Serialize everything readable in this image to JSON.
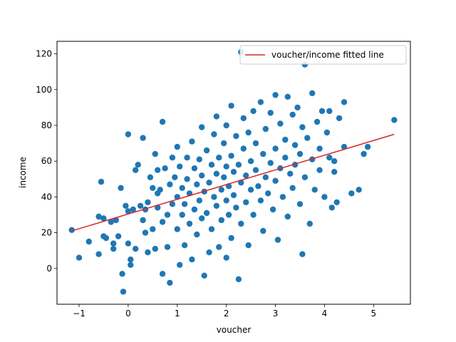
{
  "chart_data": {
    "type": "scatter",
    "title": "",
    "xlabel": "voucher",
    "ylabel": "income",
    "xlim": [
      -1.45,
      5.75
    ],
    "ylim": [
      -20,
      127
    ],
    "xticks": [
      -1,
      0,
      1,
      2,
      3,
      4,
      5
    ],
    "yticks": [
      0,
      20,
      40,
      60,
      80,
      100,
      120
    ],
    "xtick_labels": [
      "−1",
      "0",
      "1",
      "2",
      "3",
      "4",
      "5"
    ],
    "ytick_labels": [
      "0",
      "20",
      "40",
      "60",
      "80",
      "100",
      "120"
    ],
    "grid": false,
    "legend": {
      "placement": "top-right",
      "entries": [
        "voucher/income fitted line"
      ]
    },
    "colors": {
      "points": "#1f77b4",
      "fit_line": "#d62728"
    },
    "fit_line": {
      "x": [
        -1.15,
        5.42
      ],
      "y": [
        21,
        75
      ]
    },
    "series": [
      {
        "points": [
          [
            -1.15,
            21.5
          ],
          [
            -1.0,
            6
          ],
          [
            -0.8,
            15
          ],
          [
            -0.6,
            8
          ],
          [
            -0.6,
            29
          ],
          [
            -0.55,
            48.5
          ],
          [
            -0.5,
            28
          ],
          [
            -0.5,
            18
          ],
          [
            -0.45,
            17
          ],
          [
            -0.35,
            26
          ],
          [
            -0.3,
            14
          ],
          [
            -0.3,
            11
          ],
          [
            -0.25,
            27
          ],
          [
            -0.2,
            18
          ],
          [
            -0.15,
            45
          ],
          [
            -0.1,
            -13
          ],
          [
            -0.12,
            -3
          ],
          [
            -0.05,
            35
          ],
          [
            0.0,
            75
          ],
          [
            0.0,
            32
          ],
          [
            0.05,
            2
          ],
          [
            0.05,
            5
          ],
          [
            0.0,
            14
          ],
          [
            0.1,
            33
          ],
          [
            0.15,
            55
          ],
          [
            0.15,
            11
          ],
          [
            0.2,
            58
          ],
          [
            0.25,
            35
          ],
          [
            0.3,
            73
          ],
          [
            0.3,
            27
          ],
          [
            0.35,
            20
          ],
          [
            0.35,
            33
          ],
          [
            0.4,
            37
          ],
          [
            0.4,
            9
          ],
          [
            0.45,
            51
          ],
          [
            0.5,
            22
          ],
          [
            0.5,
            45
          ],
          [
            0.55,
            64
          ],
          [
            0.55,
            11
          ],
          [
            0.6,
            55
          ],
          [
            0.6,
            34
          ],
          [
            0.6,
            42
          ],
          [
            0.65,
            44
          ],
          [
            0.7,
            26
          ],
          [
            0.7,
            82
          ],
          [
            0.7,
            -3
          ],
          [
            0.75,
            56
          ],
          [
            0.8,
            12
          ],
          [
            0.8,
            30
          ],
          [
            0.85,
            -8
          ],
          [
            0.85,
            47
          ],
          [
            0.9,
            62
          ],
          [
            0.9,
            36
          ],
          [
            0.95,
            51
          ],
          [
            1.0,
            68
          ],
          [
            1.0,
            22
          ],
          [
            1.0,
            40
          ],
          [
            1.05,
            2
          ],
          [
            1.05,
            57
          ],
          [
            1.1,
            45
          ],
          [
            1.1,
            30
          ],
          [
            1.15,
            13
          ],
          [
            1.15,
            36
          ],
          [
            1.2,
            62
          ],
          [
            1.2,
            50
          ],
          [
            1.25,
            25
          ],
          [
            1.25,
            42
          ],
          [
            1.3,
            71
          ],
          [
            1.3,
            5
          ],
          [
            1.35,
            33
          ],
          [
            1.35,
            56
          ],
          [
            1.4,
            47
          ],
          [
            1.4,
            19
          ],
          [
            1.45,
            61
          ],
          [
            1.45,
            38
          ],
          [
            1.5,
            79
          ],
          [
            1.5,
            28
          ],
          [
            1.5,
            52
          ],
          [
            1.55,
            -4
          ],
          [
            1.55,
            43
          ],
          [
            1.6,
            66
          ],
          [
            1.6,
            31
          ],
          [
            1.65,
            9
          ],
          [
            1.65,
            48
          ],
          [
            1.7,
            58
          ],
          [
            1.7,
            22
          ],
          [
            1.75,
            75
          ],
          [
            1.75,
            40
          ],
          [
            1.8,
            85
          ],
          [
            1.8,
            53
          ],
          [
            1.8,
            35
          ],
          [
            1.85,
            12
          ],
          [
            1.85,
            62
          ],
          [
            1.9,
            44
          ],
          [
            1.9,
            27
          ],
          [
            1.95,
            70
          ],
          [
            1.95,
            51
          ],
          [
            2.0,
            80
          ],
          [
            2.0,
            38
          ],
          [
            2.0,
            57
          ],
          [
            2.0,
            6
          ],
          [
            2.05,
            46
          ],
          [
            2.05,
            30
          ],
          [
            2.1,
            91
          ],
          [
            2.1,
            63
          ],
          [
            2.1,
            17
          ],
          [
            2.15,
            54
          ],
          [
            2.15,
            41
          ],
          [
            2.2,
            74
          ],
          [
            2.2,
            34
          ],
          [
            2.25,
            -6
          ],
          [
            2.25,
            58
          ],
          [
            2.3,
            121
          ],
          [
            2.3,
            48
          ],
          [
            2.3,
            25
          ],
          [
            2.35,
            67
          ],
          [
            2.35,
            84
          ],
          [
            2.4,
            52
          ],
          [
            2.4,
            37
          ],
          [
            2.45,
            76
          ],
          [
            2.45,
            13
          ],
          [
            2.5,
            60
          ],
          [
            2.5,
            44
          ],
          [
            2.55,
            88
          ],
          [
            2.55,
            30
          ],
          [
            2.6,
            55
          ],
          [
            2.6,
            70
          ],
          [
            2.65,
            46
          ],
          [
            2.7,
            93
          ],
          [
            2.7,
            38
          ],
          [
            2.75,
            64
          ],
          [
            2.75,
            21
          ],
          [
            2.8,
            51
          ],
          [
            2.8,
            78
          ],
          [
            2.85,
            42
          ],
          [
            2.9,
            87
          ],
          [
            2.9,
            59
          ],
          [
            2.95,
            33
          ],
          [
            3.0,
            97
          ],
          [
            3.0,
            67
          ],
          [
            3.0,
            49
          ],
          [
            3.05,
            16
          ],
          [
            3.1,
            56
          ],
          [
            3.1,
            81
          ],
          [
            3.15,
            40
          ],
          [
            3.2,
            72
          ],
          [
            3.2,
            62
          ],
          [
            3.25,
            96
          ],
          [
            3.25,
            29
          ],
          [
            3.3,
            53
          ],
          [
            3.35,
            86
          ],
          [
            3.35,
            45
          ],
          [
            3.4,
            69
          ],
          [
            3.4,
            58
          ],
          [
            3.45,
            90
          ],
          [
            3.5,
            36
          ],
          [
            3.5,
            64
          ],
          [
            3.55,
            79
          ],
          [
            3.55,
            8
          ],
          [
            3.6,
            114
          ],
          [
            3.6,
            51
          ],
          [
            3.65,
            73
          ],
          [
            3.7,
            25
          ],
          [
            3.75,
            98
          ],
          [
            3.75,
            61
          ],
          [
            3.8,
            44
          ],
          [
            3.85,
            82
          ],
          [
            3.9,
            67
          ],
          [
            3.9,
            55
          ],
          [
            3.95,
            88
          ],
          [
            4.0,
            40
          ],
          [
            4.05,
            76
          ],
          [
            4.1,
            62
          ],
          [
            4.1,
            88
          ],
          [
            4.15,
            34
          ],
          [
            4.2,
            60
          ],
          [
            4.2,
            54
          ],
          [
            4.25,
            37
          ],
          [
            4.3,
            84
          ],
          [
            4.4,
            93
          ],
          [
            4.4,
            68
          ],
          [
            4.55,
            42
          ],
          [
            4.7,
            44
          ],
          [
            4.8,
            64
          ],
          [
            4.88,
            68
          ],
          [
            5.42,
            83
          ]
        ]
      }
    ]
  }
}
